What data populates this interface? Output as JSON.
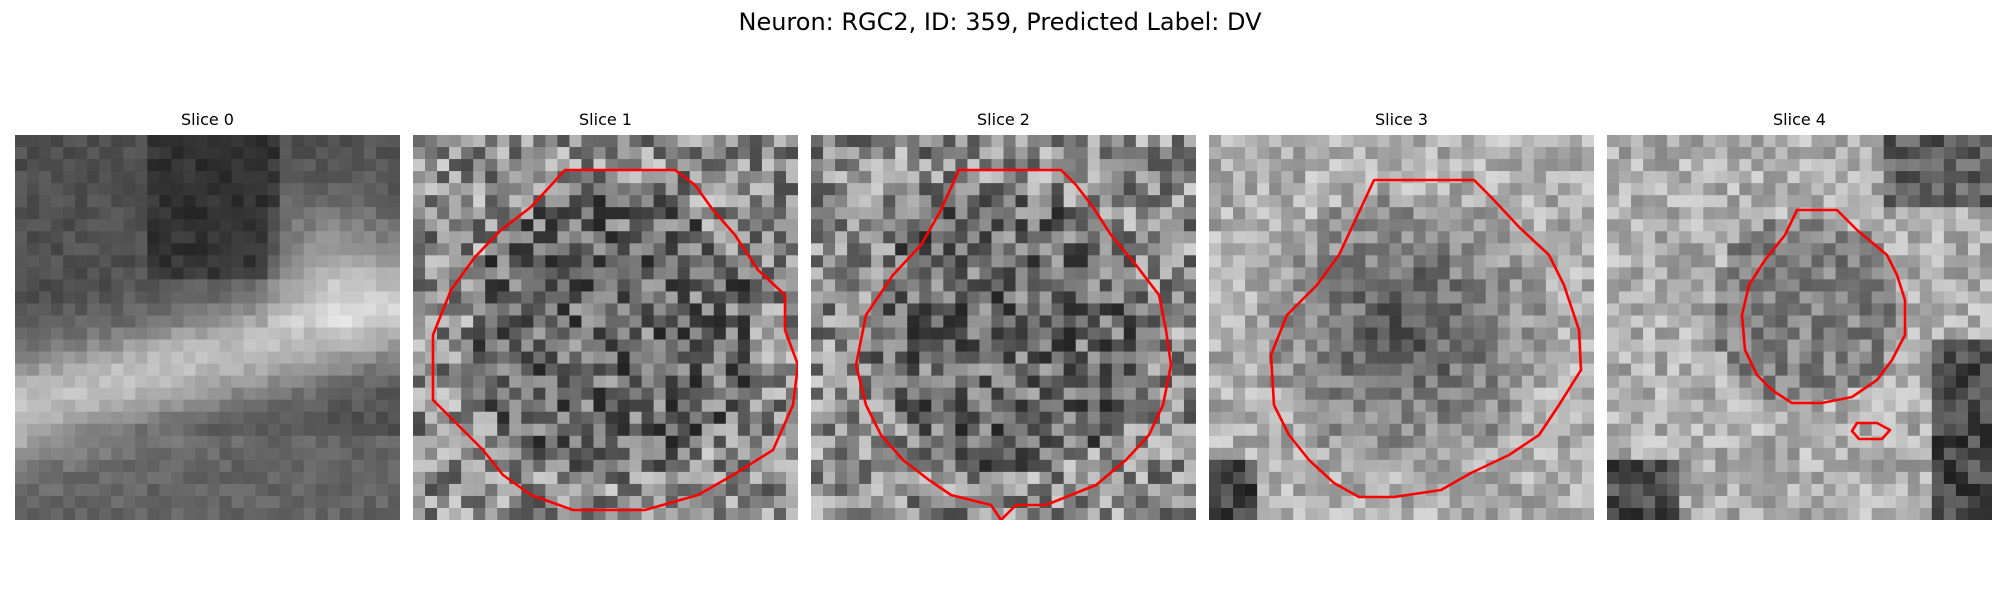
{
  "figure": {
    "title": "Neuron: RGC2, ID: 359, Predicted Label: DV",
    "contour_color": "#ff0000",
    "background_color": "#ffffff"
  },
  "panels": [
    {
      "title": "Slice 0",
      "texture": "smooth",
      "seed": 11,
      "has_contour": false
    },
    {
      "title": "Slice 1",
      "texture": "noisy",
      "seed": 23,
      "has_contour": true
    },
    {
      "title": "Slice 2",
      "texture": "noisy",
      "seed": 37,
      "has_contour": true
    },
    {
      "title": "Slice 3",
      "texture": "medium",
      "seed": 51,
      "has_contour": true
    },
    {
      "title": "Slice 4",
      "texture": "medium",
      "seed": 67,
      "has_contour": true
    }
  ]
}
